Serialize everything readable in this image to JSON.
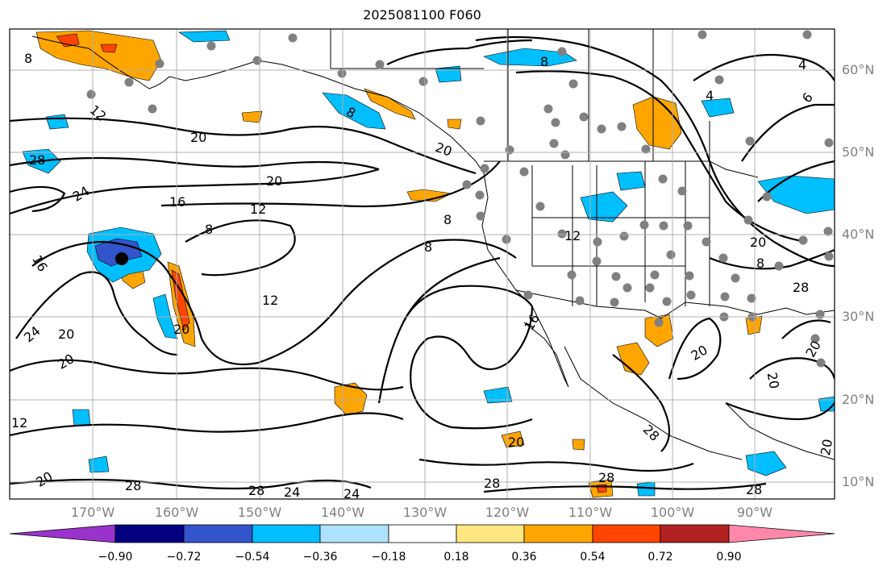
{
  "title": "2025081100 F060",
  "longitude_labels": [
    "170°W",
    "160°W",
    "150°W",
    "140°W",
    "130°W",
    "120°W",
    "110°W",
    "100°W",
    "90°W"
  ],
  "latitude_labels": [
    "60°N",
    "50°N",
    "40°N",
    "30°N",
    "20°N",
    "10°N"
  ],
  "colorbar": {
    "tick_labels": [
      "−0.90",
      "−0.72",
      "−0.54",
      "−0.36",
      "−0.18",
      "0.18",
      "0.36",
      "0.54",
      "0.72",
      "0.90"
    ],
    "colors": [
      "#9a33cc",
      "#000080",
      "#3355cc",
      "#00bfff",
      "#aee2ff",
      "#ffffff",
      "#ffe680",
      "#ffa500",
      "#ff4500",
      "#b22222",
      "#ff88aa"
    ]
  },
  "contour_labels": [
    "8",
    "12",
    "20",
    "28",
    "24",
    "16",
    "8",
    "12",
    "20",
    "20",
    "16",
    "24",
    "20",
    "20",
    "12",
    "8",
    "28",
    "24",
    "24",
    "8",
    "8",
    "8",
    "4",
    "4",
    "6",
    "16",
    "12",
    "8",
    "20",
    "28",
    "20",
    "20",
    "20",
    "28",
    "28",
    "20",
    "28",
    "28",
    "28",
    "12",
    "20",
    "20",
    "20"
  ],
  "colors": {
    "positive": "#ffa500",
    "positive_strong": "#ff4500",
    "negative": "#00bfff",
    "negative_strong": "#3355cc",
    "station": "#808080",
    "contour": "#000000",
    "grid": "#b0b0b0"
  }
}
